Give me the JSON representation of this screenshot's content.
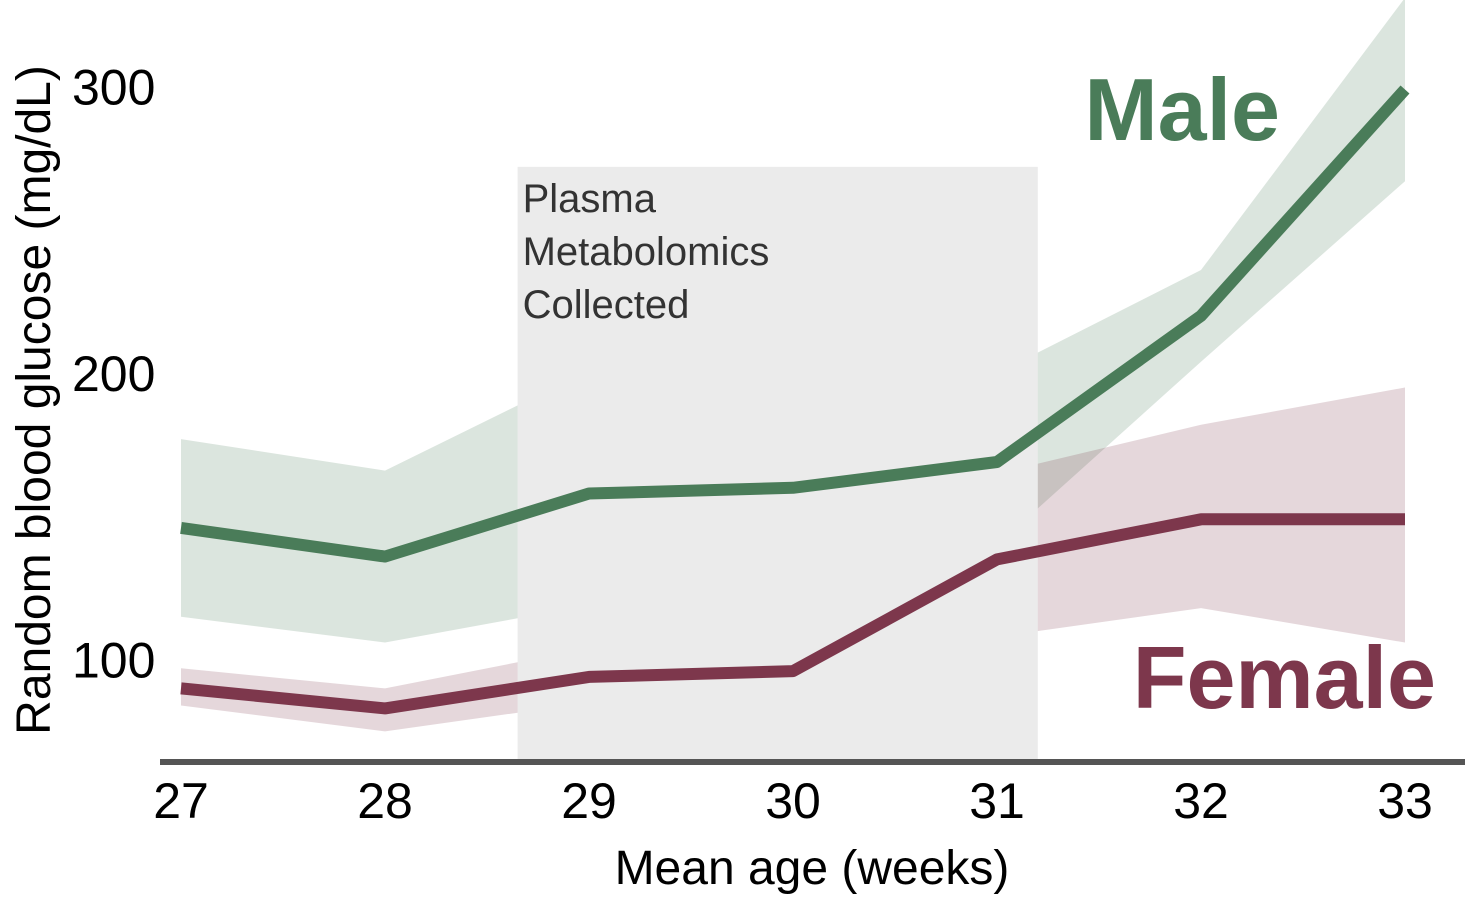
{
  "chart_data": {
    "type": "line",
    "xlabel": "Mean age (weeks)",
    "ylabel": "Random blood glucose (mg/dL)",
    "x": [
      27,
      28,
      29,
      30,
      31,
      32,
      33
    ],
    "xlim": [
      27,
      33
    ],
    "ylim": [
      65,
      325
    ],
    "x_ticks": [
      "27",
      "28",
      "29",
      "30",
      "31",
      "32",
      "33"
    ],
    "y_ticks": [
      "100",
      "200",
      "300"
    ],
    "grid": false,
    "series": [
      {
        "name": "Male",
        "color": "#4a7c59",
        "values": [
          146,
          136,
          158,
          160,
          169,
          220,
          299
        ],
        "band_upper": [
          177,
          166,
          201,
          196,
          200,
          236,
          331
        ],
        "band_lower": [
          115,
          106,
          119,
          129,
          140,
          204,
          267
        ]
      },
      {
        "name": "Female",
        "color": "#7d374c",
        "values": [
          90,
          83,
          94,
          96,
          135,
          149,
          149
        ],
        "band_upper": [
          97,
          90,
          104,
          104,
          165,
          182,
          195
        ],
        "band_lower": [
          84,
          75,
          85,
          88,
          108,
          118,
          106
        ]
      }
    ],
    "annotation": {
      "lines": [
        "Plasma",
        "Metabolomics",
        "Collected"
      ],
      "x_range": [
        28.65,
        31.2
      ],
      "y_top": 272,
      "color": "#ebebeb"
    }
  }
}
